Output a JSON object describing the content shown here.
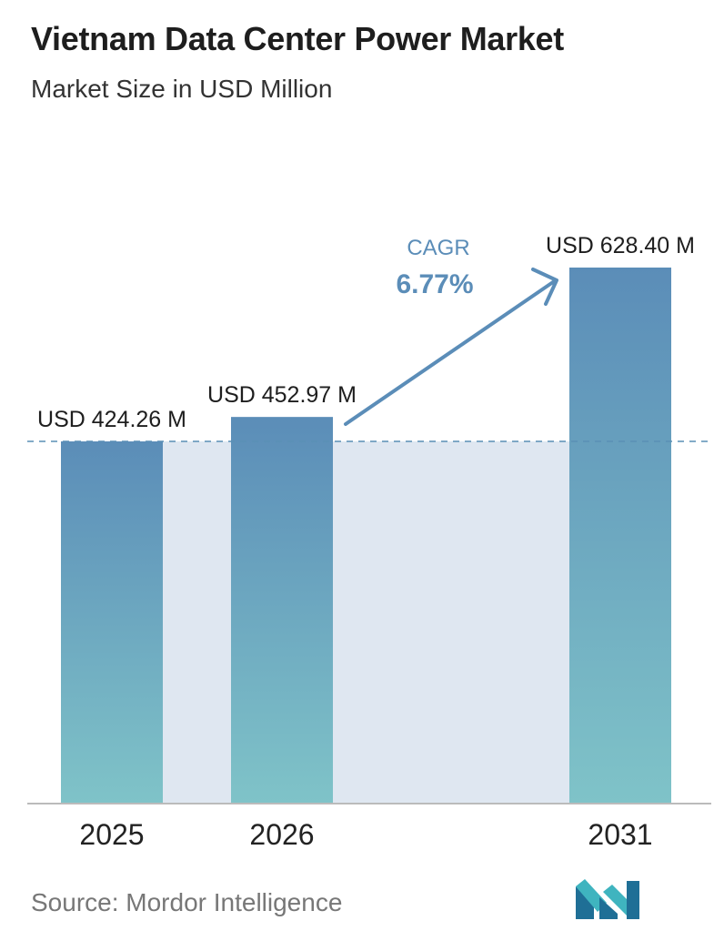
{
  "header": {
    "title": "Vietnam Data Center Power Market",
    "subtitle": "Market Size in USD Million"
  },
  "chart_data": {
    "type": "bar",
    "title": "Vietnam Data Center Power Market",
    "subtitle": "Market Size in USD Million",
    "categories": [
      "2025",
      "2026",
      "2031"
    ],
    "values": [
      424.26,
      452.97,
      628.4
    ],
    "data_labels": [
      "USD 424.26 M",
      "USD 452.97 M",
      "USD 628.40 M"
    ],
    "xlabel": "",
    "ylabel": "",
    "ylim": [
      0,
      628.4
    ],
    "grid": false,
    "reference_line": {
      "value": 424.26,
      "style": "dashed"
    },
    "annotation": {
      "label": "CAGR",
      "value": "6.77%"
    },
    "colors": {
      "bar_top": "#5b8db8",
      "bar_bottom": "#7fc3c8",
      "shade": "#dfe7f1",
      "reference_line": "#5a8fb5",
      "arrow": "#5b8db8",
      "annotation_text": "#5b8db8",
      "baseline": "#bbbbbb"
    }
  },
  "footer": {
    "source": "Source:  Mordor Intelligence",
    "logo_icon": "mordor-intelligence-logo-icon"
  }
}
